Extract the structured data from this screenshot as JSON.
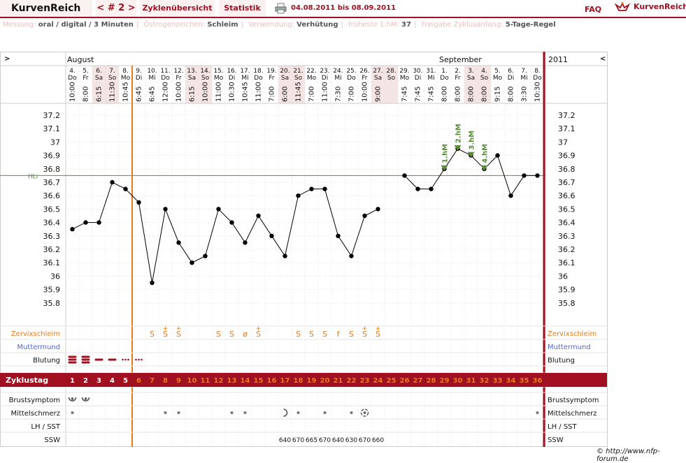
{
  "app": {
    "brand": "KurvenReich",
    "cycle_nav": "< # 2 >",
    "tabs": [
      "Zyklenübersicht",
      "Statistik"
    ],
    "date_range": "04.08.2011 bis 08.09.2011",
    "faq": "FAQ",
    "logo_text": "KurvenReich",
    "print_icon": "printer-icon",
    "logo_icon": "crown-icon"
  },
  "info": {
    "messung_label": "Messung:",
    "messung_value": "oral / digital / 3 Minuten",
    "oestrogen_label": "Östrogenzeichen:",
    "oestrogen_value": "Schleim",
    "verwendung_label": "Verwendung:",
    "verwendung_value": "Verhütung",
    "fhm_label": "früheste 1.hM:",
    "fhm_value": "37",
    "freigabe_label": "Freigabe Zyklusanfang:",
    "freigabe_value": "5-Tage-Regel"
  },
  "chart_data": {
    "type": "line",
    "title": "",
    "ylim": [
      35.8,
      37.2
    ],
    "y_ticks": [
      "37.2",
      "37.1",
      "37",
      "36.9",
      "36.8",
      "36.7",
      "36.6",
      "36.5",
      "36.4",
      "36.3",
      "36.2",
      "36.1",
      "36",
      "35.9",
      "35.8"
    ],
    "coverline_label": "HLi",
    "coverline_value": 36.75,
    "month_labels": [
      {
        "name": "August",
        "day_index": 0
      },
      {
        "name": "September",
        "day_index": 28
      }
    ],
    "year_label": "2011",
    "nav_prev": ">",
    "nav_next": "<",
    "day_numbers": [
      "4.",
      "5.",
      "6.",
      "7.",
      "8.",
      "9.",
      "10.",
      "11.",
      "12.",
      "13.",
      "14.",
      "15.",
      "16.",
      "17.",
      "18.",
      "19.",
      "20.",
      "21.",
      "22.",
      "23.",
      "24.",
      "25.",
      "26.",
      "27.",
      "28.",
      "29.",
      "30.",
      "31.",
      "1.",
      "2.",
      "3.",
      "4.",
      "5.",
      "6.",
      "7.",
      "8."
    ],
    "weekdays": [
      "Do",
      "Fr",
      "Sa",
      "So",
      "Mo",
      "Di",
      "Mi",
      "Do",
      "Fr",
      "Sa",
      "So",
      "Mo",
      "Di",
      "Mi",
      "Do",
      "Fr",
      "Sa",
      "So",
      "Mo",
      "Di",
      "Mi",
      "Do",
      "Fr",
      "Sa",
      "So",
      "Mo",
      "Di",
      "Mi",
      "Do",
      "Fr",
      "Sa",
      "So",
      "Mo",
      "Di",
      "Mi",
      "Do"
    ],
    "times": [
      "10:00",
      "8:00",
      "6:15",
      "11:30",
      "10:45",
      "6:45",
      "6:45",
      "12:00",
      "10:00",
      "6:15",
      "10:00",
      "11:00",
      "10:30",
      "10:45",
      "11:00",
      "7:00",
      "6:00",
      "11:45",
      "7:00",
      "11:00",
      "7:30",
      "7:00",
      "10:00",
      "9:00",
      "",
      "7:45",
      "7:45",
      "7:45",
      "8:00",
      "8:00",
      "8:00",
      "8:00",
      "9:15",
      "8:00",
      "3:30",
      "10:30"
    ],
    "series": [
      {
        "values": [
          36.35,
          36.4,
          36.4,
          36.7,
          36.65,
          36.55,
          35.95,
          36.5,
          36.25,
          36.1,
          36.15,
          36.5,
          36.4,
          36.25,
          36.45,
          36.3,
          36.15,
          36.6,
          36.65,
          36.65,
          36.3,
          36.15,
          36.45,
          36.5,
          null,
          36.75,
          36.65,
          36.65,
          36.8,
          36.95,
          36.9,
          36.8,
          36.9,
          36.6,
          36.75,
          36.75
        ]
      }
    ],
    "high_markers": [
      {
        "day_index": 28,
        "label": "1.hM"
      },
      {
        "day_index": 29,
        "label": "2.hM"
      },
      {
        "day_index": 30,
        "label": "3.hM"
      },
      {
        "day_index": 31,
        "label": "4.hM"
      }
    ],
    "rows": {
      "zervix_label": "Zervixschleim",
      "zervix": [
        "",
        "",
        "",
        "",
        "",
        "",
        "S",
        "S+",
        "S+",
        "",
        "",
        "S",
        "S",
        "ø",
        "S+",
        "",
        "",
        "S",
        "S",
        "S",
        "f",
        "S",
        "S+",
        "S+",
        "",
        "",
        "",
        "",
        "",
        "",
        "",
        "",
        "",
        "",
        "",
        ""
      ],
      "muttermund_label": "Muttermund",
      "blutung_label": "Blutung",
      "blutung": [
        "heavy",
        "heavy",
        "medium",
        "medium",
        "light",
        "light",
        "",
        "",
        "",
        "",
        "",
        "",
        "",
        "",
        "",
        "",
        "",
        "",
        "",
        "",
        "",
        "",
        "",
        "",
        "",
        "",
        "",
        "",
        "",
        "",
        "",
        "",
        "",
        "",
        "",
        ""
      ],
      "zyklustag_label": "Zyklustag",
      "zyklustag": [
        "1",
        "2",
        "3",
        "4",
        "5",
        "6",
        "7",
        "8",
        "9",
        "10",
        "11",
        "12",
        "13",
        "14",
        "15",
        "16",
        "17",
        "18",
        "19",
        "20",
        "21",
        "22",
        "23",
        "24",
        "25",
        "26",
        "27",
        "28",
        "29",
        "30",
        "31",
        "32",
        "33",
        "34",
        "35",
        "36"
      ],
      "brust_label": "Brustsymptom",
      "brust": [
        "mark",
        "mark",
        "",
        "",
        "",
        "",
        "",
        "",
        "",
        "",
        "",
        "",
        "",
        "",
        "",
        "",
        "",
        "",
        "",
        "",
        "",
        "",
        "",
        "",
        "",
        "",
        "",
        "",
        "",
        "",
        "",
        "",
        "",
        "",
        "",
        ""
      ],
      "mittel_label": "Mittelschmerz",
      "mittel": [
        "dot",
        "",
        "",
        "",
        "",
        "",
        "",
        "dot",
        "dot",
        "",
        "",
        "",
        "dot",
        "dot",
        "",
        "",
        "half",
        "dot",
        "",
        "dot",
        "",
        "dot",
        "ring",
        "",
        "",
        "",
        "",
        "",
        "",
        "",
        "",
        "",
        "",
        "",
        "",
        "dot"
      ],
      "lh_label": "LH / SST",
      "ssw_label": "SSW",
      "ssw": [
        "",
        "",
        "",
        "",
        "",
        "",
        "",
        "",
        "",
        "",
        "",
        "",
        "",
        "",
        "",
        "",
        "640",
        "670",
        "665",
        "670",
        "640",
        "630",
        "670",
        "660",
        "",
        "",
        "",
        "",
        "",
        "",
        "",
        "",
        "",
        "",
        "",
        ""
      ]
    },
    "right_labels": [
      "Zervixschleim",
      "Muttermund",
      "Blutung",
      "Brustsymptom",
      "Mittelschmerz",
      "LH / SST",
      "SSW"
    ]
  },
  "colors": {
    "brand_red": "#a01020",
    "orange": "#e87a1a",
    "green": "#5a8c3a",
    "weekend_bg": "#f5e4e4",
    "muttermund": "#5566cc"
  },
  "copyright": "© http://www.nfp-forum.de"
}
